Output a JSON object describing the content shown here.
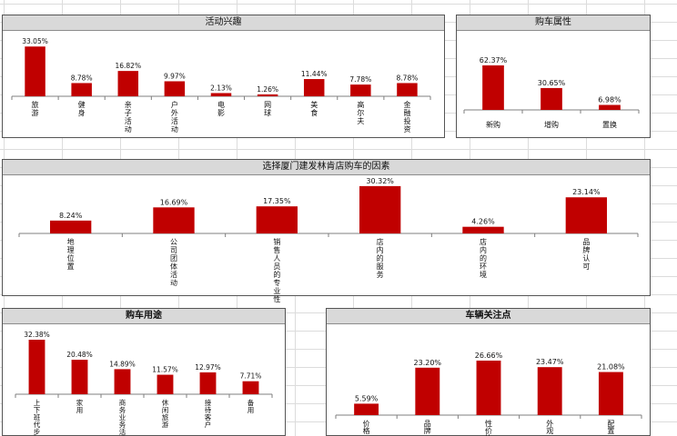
{
  "colors": {
    "bar": "#c00000",
    "axis": "#7f7f7f"
  },
  "chart_data": [
    {
      "id": "interest",
      "type": "bar",
      "title": "活动兴趣",
      "categories": [
        "旅游",
        "健身",
        "亲子活动",
        "户外活动",
        "电影",
        "网球",
        "美食",
        "高尔夫",
        "金融投资"
      ],
      "values": [
        33.05,
        8.78,
        16.82,
        9.97,
        2.13,
        1.26,
        11.44,
        7.78,
        8.78
      ],
      "labels": [
        "33.05%",
        "8.78%",
        "16.82%",
        "9.97%",
        "2.13%",
        "1.26%",
        "11.44%",
        "7.78%",
        "8.78%"
      ],
      "ylim": [
        0,
        35
      ],
      "legend": "none"
    },
    {
      "id": "purchase-type",
      "type": "bar",
      "title": "购车属性",
      "categories": [
        "新购",
        "增购",
        "置换"
      ],
      "values": [
        62.37,
        30.65,
        6.98
      ],
      "labels": [
        "62.37%",
        "30.65%",
        "6.98%"
      ],
      "ylim": [
        0,
        70
      ],
      "legend": "none"
    },
    {
      "id": "store-factors",
      "type": "bar",
      "title": "选择厦门建发林肯店购车的因素",
      "categories": [
        "地理位置",
        "公司团体活动",
        "销售人员的专业性",
        "店内的服务",
        "店内的环境",
        "品牌认可"
      ],
      "values": [
        8.24,
        16.69,
        17.35,
        30.32,
        4.26,
        23.14
      ],
      "labels": [
        "8.24%",
        "16.69%",
        "17.35%",
        "30.32%",
        "4.26%",
        "23.14%"
      ],
      "ylim": [
        0,
        32
      ],
      "legend": "none"
    },
    {
      "id": "car-usage",
      "type": "bar",
      "title": "购车用途",
      "categories": [
        "上下班代步",
        "家用",
        "商务业务活动",
        "休闲旅游",
        "接待客户",
        "备用"
      ],
      "values": [
        32.38,
        20.48,
        14.89,
        11.57,
        12.97,
        7.71
      ],
      "labels": [
        "32.38%",
        "20.48%",
        "14.89%",
        "11.57%",
        "12.97%",
        "7.71%"
      ],
      "ylim": [
        0,
        34
      ],
      "legend": "none"
    },
    {
      "id": "vehicle-focus",
      "type": "bar",
      "title": "车辆关注点",
      "categories": [
        "价格",
        "品牌",
        "性价比",
        "外观",
        "配置"
      ],
      "values": [
        5.59,
        23.2,
        26.66,
        23.47,
        21.08
      ],
      "labels": [
        "5.59%",
        "23.20%",
        "26.66%",
        "23.47%",
        "21.08%"
      ],
      "ylim": [
        0,
        32
      ],
      "legend": "none"
    }
  ]
}
